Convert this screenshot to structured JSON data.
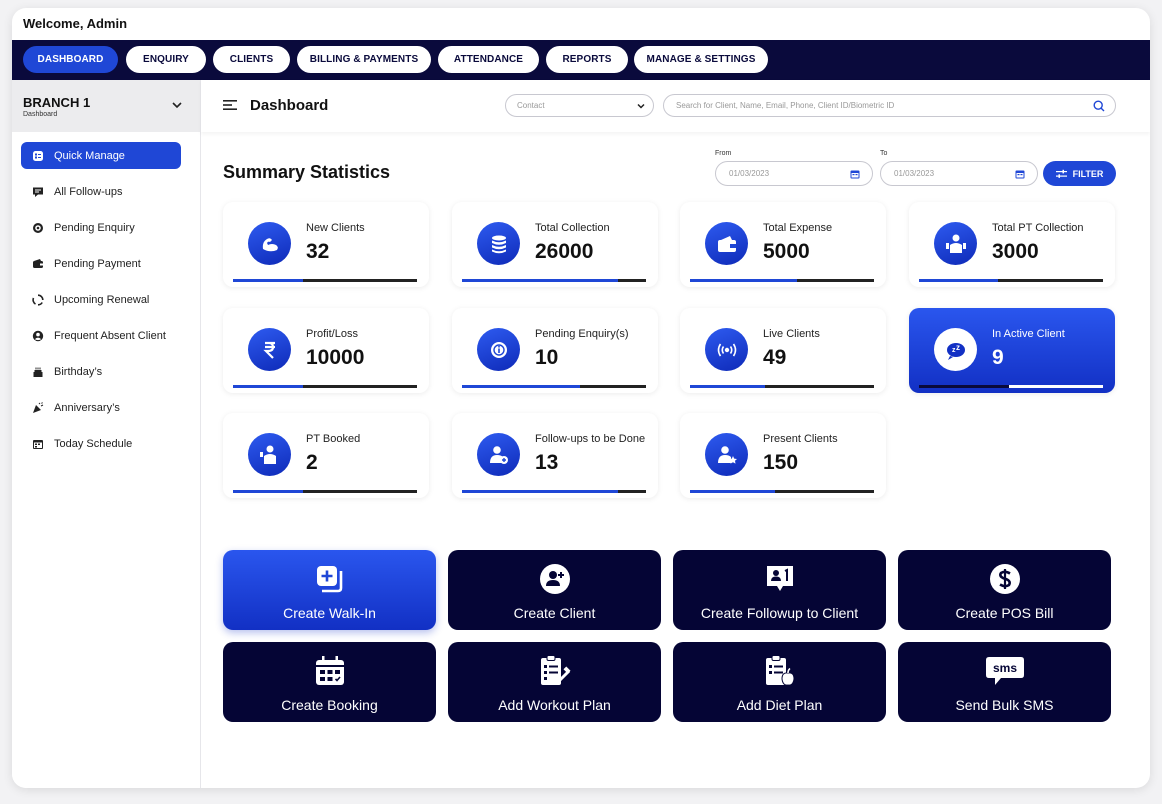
{
  "header": {
    "welcome": "Welcome, Admin"
  },
  "nav": {
    "tabs": [
      {
        "label": "DASHBOARD",
        "active": true
      },
      {
        "label": "ENQUIRY",
        "active": false
      },
      {
        "label": "CLIENTS",
        "active": false
      },
      {
        "label": "BILLING & PAYMENTS",
        "active": false
      },
      {
        "label": "ATTENDANCE",
        "active": false
      },
      {
        "label": "REPORTS",
        "active": false
      },
      {
        "label": "MANAGE & SETTINGS",
        "active": false
      }
    ]
  },
  "sidebar": {
    "branch_name": "BRANCH 1",
    "branch_sub": "Dashboard",
    "items": [
      {
        "label": "Quick Manage",
        "icon": "quick-manage-icon",
        "active": true
      },
      {
        "label": "All Follow-ups",
        "icon": "chat-icon"
      },
      {
        "label": "Pending Enquiry",
        "icon": "enquiry-icon"
      },
      {
        "label": "Pending Payment",
        "icon": "wallet-icon"
      },
      {
        "label": "Upcoming Renewal",
        "icon": "renewal-icon"
      },
      {
        "label": "Frequent Absent Client",
        "icon": "user-circle-icon"
      },
      {
        "label": "Birthday’s",
        "icon": "cake-icon"
      },
      {
        "label": "Anniversary’s",
        "icon": "party-icon"
      },
      {
        "label": "Today Schedule",
        "icon": "calendar-icon"
      }
    ]
  },
  "topbar": {
    "title": "Dashboard",
    "contact_placeholder": "Contact",
    "search_placeholder": "Search for Client, Name, Email, Phone, Client ID/Biometric ID"
  },
  "summary": {
    "title": "Summary Statistics",
    "from_label": "From",
    "to_label": "To",
    "from_date": "01/03/2023",
    "to_date": "01/03/2023",
    "filter_label": "FILTER"
  },
  "stats": [
    {
      "label": "New Clients",
      "value": "32",
      "icon": "muscle-icon",
      "progress": 0.38
    },
    {
      "label": "Total Collection",
      "value": "26000",
      "icon": "coins-icon",
      "progress": 0.85
    },
    {
      "label": "Total Expense",
      "value": "5000",
      "icon": "wallet-icon",
      "progress": 0.58
    },
    {
      "label": "Total PT Collection",
      "value": "3000",
      "icon": "trainer-icon",
      "progress": 0.43
    },
    {
      "label": "Profit/Loss",
      "value": "10000",
      "icon": "rupee-icon",
      "progress": 0.38
    },
    {
      "label": "Pending Enquiry(s)",
      "value": "10",
      "icon": "enquiry-icon",
      "progress": 0.64
    },
    {
      "label": "Live Clients",
      "value": "49",
      "icon": "live-signal-icon",
      "progress": 0.41
    },
    {
      "label": "In Active Client",
      "value": "9",
      "icon": "sleep-icon",
      "progress": 0.49,
      "highlight": true
    },
    {
      "label": "PT Booked",
      "value": "2",
      "icon": "trainer-icon",
      "progress": 0.38
    },
    {
      "label": "Follow-ups to be Done",
      "value": "13",
      "icon": "user-add-icon",
      "progress": 0.85
    },
    {
      "label": "Present Clients",
      "value": "150",
      "icon": "user-star-icon",
      "progress": 0.46
    }
  ],
  "actions": [
    {
      "label": "Create Walk-In",
      "icon": "walk-in-icon",
      "primary": true
    },
    {
      "label": "Create Client",
      "icon": "add-user-icon"
    },
    {
      "label": "Create Followup to Client",
      "icon": "followup-icon"
    },
    {
      "label": "Create POS Bill",
      "icon": "dollar-icon"
    },
    {
      "label": "Create Booking",
      "icon": "booking-calendar-icon"
    },
    {
      "label": "Add Workout Plan",
      "icon": "workout-plan-icon"
    },
    {
      "label": "Add Diet Plan",
      "icon": "diet-plan-icon"
    },
    {
      "label": "Send Bulk SMS",
      "icon": "sms-icon",
      "sms_text": "sms"
    }
  ],
  "colors": {
    "accent": "#1f47d6",
    "navy": "#0a0a3c",
    "action_dark": "#050535"
  }
}
